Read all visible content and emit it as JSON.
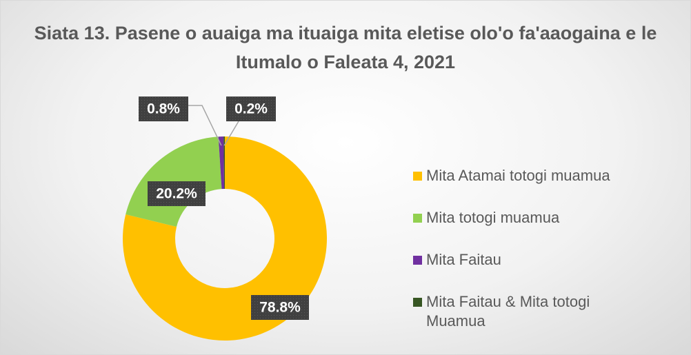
{
  "chart_data": {
    "type": "donut",
    "title": "Siata 13. Pasene o auaiga ma ituaiga mita eletise olo'o fa'aaogaina e le Itumalo o Faleata 4, 2021",
    "categories": [
      "Mita Atamai totogi muamua",
      "Mita totogi muamua",
      "Mita Faitau",
      "Mita Faitau & Mita totogi Muamua"
    ],
    "values": [
      78.8,
      20.2,
      0.8,
      0.2
    ],
    "value_labels": [
      "78.8%",
      "20.2%",
      "0.8%",
      "0.2%"
    ],
    "colors": [
      "#FFC000",
      "#92D050",
      "#7030A0",
      "#375623"
    ],
    "legend": "right"
  }
}
